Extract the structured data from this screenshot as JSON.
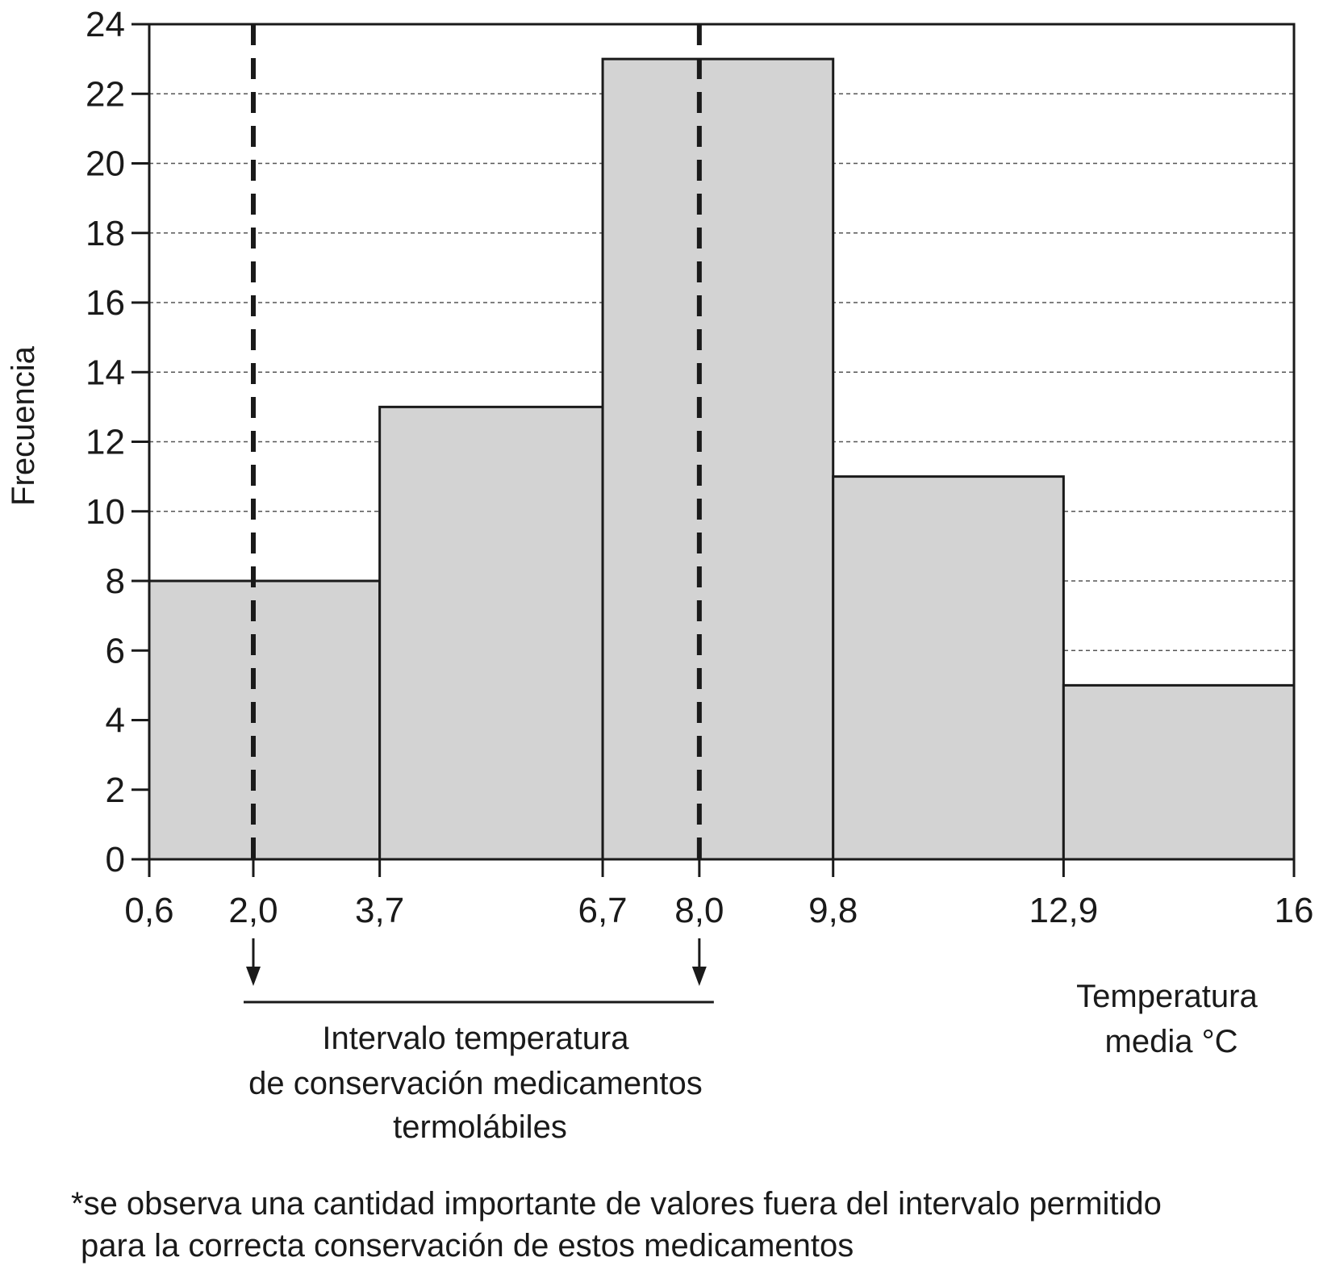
{
  "chart_data": {
    "type": "histogram",
    "ylabel": "Frecuencia",
    "xlabel_lines": [
      "Temperatura",
      "media °C"
    ],
    "bin_edges": [
      0.6,
      3.7,
      6.7,
      9.8,
      12.9,
      16
    ],
    "values": [
      8,
      13,
      23,
      11,
      5
    ],
    "x_ticks": [
      0.6,
      2.0,
      3.7,
      6.7,
      8.0,
      9.8,
      12.9,
      16
    ],
    "x_tick_labels": [
      "0,6",
      "2,0",
      "3,7",
      "6,7",
      "8,0",
      "9,8",
      "12,9",
      "16"
    ],
    "y_ticks": [
      0,
      2,
      4,
      6,
      8,
      10,
      12,
      14,
      16,
      18,
      20,
      22,
      24
    ],
    "ylim": [
      0,
      24
    ],
    "xlim": [
      0.6,
      16
    ],
    "grid": "horizontal dashed",
    "bar_color": "#d3d3d3",
    "edge_color": "#1a1a1a",
    "reference_lines": [
      {
        "x": 2.0,
        "style": "dashed"
      },
      {
        "x": 8.0,
        "style": "dashed"
      }
    ],
    "interval_annotation": {
      "from": 2.0,
      "to": 8.0,
      "lines": [
        "Intervalo temperatura",
        "de conservación medicamentos",
        "termolábiles"
      ]
    },
    "footnote_lines": [
      "*se observa una cantidad importante de valores fuera del intervalo permitido",
      "para la correcta conservación de estos medicamentos"
    ]
  }
}
